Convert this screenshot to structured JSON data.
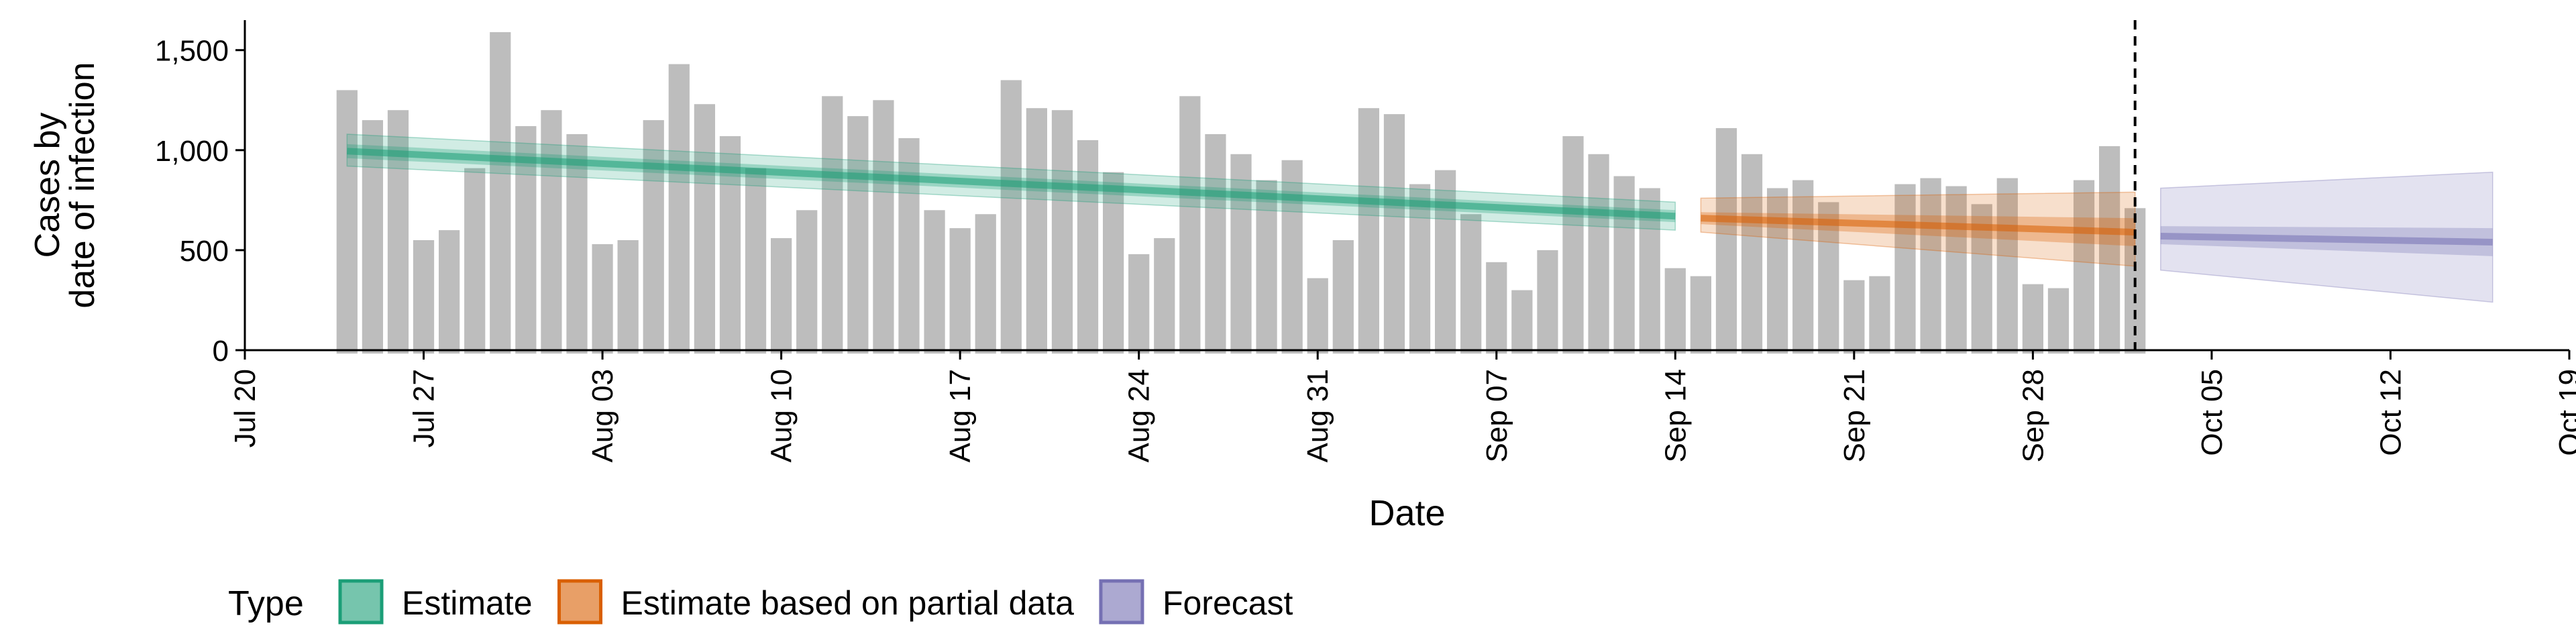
{
  "chart_data": {
    "type": "bar",
    "xlabel": "Date",
    "ylabel_lines": [
      "Cases by",
      "date of infection"
    ],
    "ylim": [
      0,
      1650
    ],
    "y_ticks": [
      0,
      500,
      1000,
      1500
    ],
    "y_tick_labels": [
      "0",
      "500",
      "1,000",
      "1,500"
    ],
    "x_range": [
      "2020-07-20",
      "2020-10-19"
    ],
    "x_ticks": [
      "2020-07-20",
      "2020-07-27",
      "2020-08-03",
      "2020-08-10",
      "2020-08-17",
      "2020-08-24",
      "2020-08-31",
      "2020-09-07",
      "2020-09-14",
      "2020-09-21",
      "2020-09-28",
      "2020-10-05",
      "2020-10-12",
      "2020-10-19"
    ],
    "x_tick_labels": [
      "Jul 20",
      "Jul 27",
      "Aug 03",
      "Aug 10",
      "Aug 17",
      "Aug 24",
      "Aug 31",
      "Sep 07",
      "Sep 14",
      "Sep 21",
      "Sep 28",
      "Oct 05",
      "Oct 12",
      "Oct 19"
    ],
    "reference_line_date": "2020-10-02",
    "bars": {
      "start_date": "2020-07-24",
      "color": "#bdbdbd",
      "values": [
        1300,
        1150,
        1200,
        550,
        600,
        910,
        1590,
        1120,
        1200,
        1080,
        530,
        550,
        1150,
        1430,
        1230,
        1070,
        910,
        560,
        700,
        1270,
        1170,
        1250,
        1060,
        700,
        610,
        680,
        1350,
        1210,
        1200,
        1050,
        890,
        480,
        560,
        1270,
        1080,
        980,
        850,
        950,
        360,
        550,
        1210,
        1180,
        830,
        900,
        680,
        440,
        300,
        500,
        1070,
        980,
        870,
        810,
        410,
        370,
        1110,
        980,
        810,
        850,
        740,
        350,
        370,
        830,
        860,
        820,
        730,
        860,
        330,
        310,
        850,
        1020,
        710
      ]
    },
    "series": [
      {
        "name": "Estimate",
        "color": "#1b9e77",
        "start": "2020-07-24",
        "end": "2020-09-14",
        "median": [
          995,
          670
        ],
        "inner": [
          [
            960,
            1030
          ],
          [
            640,
            700
          ]
        ],
        "outer": [
          [
            920,
            1080
          ],
          [
            600,
            740
          ]
        ]
      },
      {
        "name": "Estimate based on partial data",
        "color": "#d95f02",
        "start": "2020-09-15",
        "end": "2020-10-02",
        "median": [
          660,
          590
        ],
        "inner": [
          [
            630,
            690
          ],
          [
            520,
            660
          ]
        ],
        "outer": [
          [
            590,
            760
          ],
          [
            420,
            790
          ]
        ]
      },
      {
        "name": "Forecast",
        "color": "#7570b3",
        "start": "2020-10-03",
        "end": "2020-10-16",
        "median": [
          570,
          540
        ],
        "inner": [
          [
            530,
            620
          ],
          [
            470,
            610
          ]
        ],
        "outer": [
          [
            400,
            810
          ],
          [
            240,
            890
          ]
        ]
      }
    ],
    "legend": {
      "title": "Type",
      "position": "bottom-left"
    }
  }
}
